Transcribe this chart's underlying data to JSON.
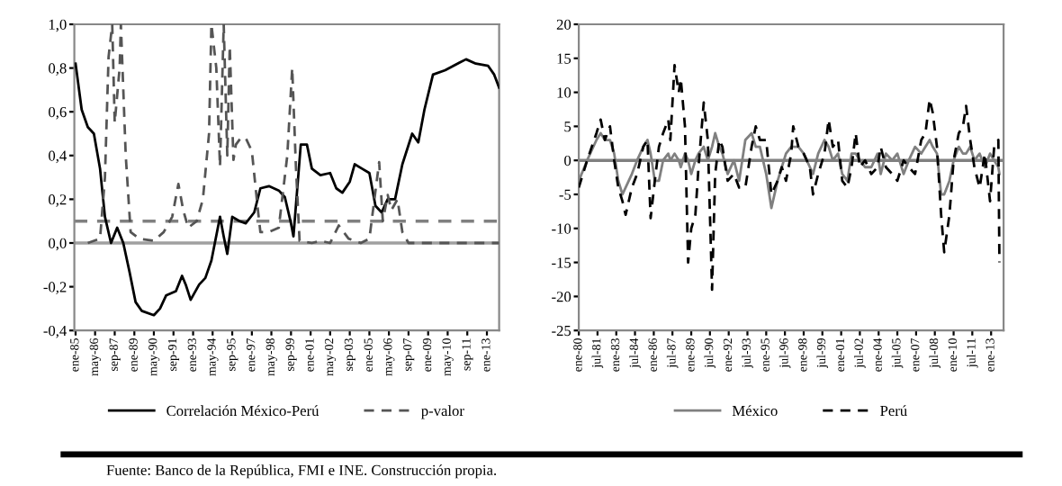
{
  "chart_data": [
    {
      "type": "line",
      "annotations": [
        "Fuente: Banco de la República, FMI e INE. Construcción propia."
      ],
      "xlim": [
        "1984-12",
        "2013-11"
      ],
      "ylim": [
        -0.4,
        1.0
      ],
      "yticks": [
        {
          "value": -0.4,
          "label": "-0,4"
        },
        {
          "value": -0.2,
          "label": "-0,2"
        },
        {
          "value": 0,
          "label": "0,0"
        },
        {
          "value": 0.2,
          "label": "0,2"
        },
        {
          "value": 0.4,
          "label": "0,4"
        },
        {
          "value": 0.6,
          "label": "0,6"
        },
        {
          "value": 0.8,
          "label": "0,8"
        },
        {
          "value": 1.0,
          "label": "1,0"
        }
      ],
      "xticks": [
        {
          "value": "1985-01",
          "label": "ene-85"
        },
        {
          "value": "1986-05",
          "label": "may-86"
        },
        {
          "value": "1987-09",
          "label": "sep-87"
        },
        {
          "value": "1989-01",
          "label": "ene-89"
        },
        {
          "value": "1990-05",
          "label": "may-90"
        },
        {
          "value": "1991-09",
          "label": "sep-91"
        },
        {
          "value": "1993-01",
          "label": "ene-93"
        },
        {
          "value": "1994-05",
          "label": "may-94"
        },
        {
          "value": "1995-09",
          "label": "sep-95"
        },
        {
          "value": "1997-01",
          "label": "ene-97"
        },
        {
          "value": "1998-05",
          "label": "may-98"
        },
        {
          "value": "1999-09",
          "label": "sep-99"
        },
        {
          "value": "2001-01",
          "label": "ene-01"
        },
        {
          "value": "2002-05",
          "label": "may-02"
        },
        {
          "value": "2003-09",
          "label": "sep-03"
        },
        {
          "value": "2005-01",
          "label": "ene-05"
        },
        {
          "value": "2006-05",
          "label": "may-06"
        },
        {
          "value": "2007-09",
          "label": "sep-07"
        },
        {
          "value": "2009-01",
          "label": "ene-09"
        },
        {
          "value": "2010-05",
          "label": "may-10"
        },
        {
          "value": "2011-09",
          "label": "sep-11"
        },
        {
          "value": "2013-01",
          "label": "ene-13"
        }
      ],
      "grid": false,
      "legend": "bottom",
      "ref_lines": [
        {
          "axis": "y",
          "value": 0,
          "label": null,
          "color": "#a0a0a0",
          "line_style": "solid"
        },
        {
          "axis": "y",
          "value": 0.1,
          "label": null,
          "color": "#808080",
          "line_style": "dashed"
        }
      ],
      "series": [
        {
          "name": "Correlación México-Perú",
          "color": "#000000",
          "line_style": "solid",
          "x": [
            "1985-01",
            "1985-06",
            "1985-11",
            "1986-04",
            "1986-09",
            "1987-01",
            "1987-06",
            "1987-11",
            "1988-04",
            "1988-09",
            "1989-02",
            "1989-07",
            "1990-05",
            "1990-10",
            "1991-03",
            "1991-11",
            "1992-04",
            "1992-07",
            "1992-11",
            "1993-06",
            "1993-11",
            "1994-04",
            "1994-11",
            "1995-02",
            "1995-05",
            "1995-09",
            "1996-03",
            "1996-08",
            "1997-03",
            "1997-08",
            "1998-03",
            "1998-11",
            "1999-04",
            "1999-09",
            "1999-11",
            "2000-05",
            "2000-10",
            "2001-02",
            "2001-09",
            "2002-05",
            "2002-10",
            "2003-03",
            "2003-09",
            "2004-01",
            "2004-07",
            "2005-01",
            "2005-06",
            "2005-11",
            "2006-04",
            "2006-10",
            "2007-04",
            "2007-12",
            "2008-05",
            "2008-10",
            "2009-05",
            "2010-03",
            "2011-01",
            "2011-08",
            "2012-04",
            "2013-02",
            "2013-07",
            "2013-11"
          ],
          "values": [
            0.82,
            0.61,
            0.53,
            0.5,
            0.34,
            0.12,
            0.0,
            0.07,
            0.0,
            -0.13,
            -0.27,
            -0.31,
            -0.33,
            -0.3,
            -0.24,
            -0.22,
            -0.15,
            -0.19,
            -0.26,
            -0.19,
            -0.16,
            -0.08,
            0.12,
            0.03,
            -0.05,
            0.12,
            0.1,
            0.09,
            0.14,
            0.25,
            0.26,
            0.24,
            0.21,
            0.09,
            0.03,
            0.45,
            0.45,
            0.34,
            0.31,
            0.32,
            0.25,
            0.23,
            0.28,
            0.36,
            0.34,
            0.32,
            0.17,
            0.14,
            0.2,
            0.2,
            0.36,
            0.5,
            0.46,
            0.61,
            0.77,
            0.79,
            0.82,
            0.84,
            0.82,
            0.81,
            0.77,
            0.71
          ]
        },
        {
          "name": "p-valor",
          "color": "#555555",
          "line_style": "dashed",
          "x": [
            "1985-11",
            "1986-09",
            "1987-01",
            "1987-04",
            "1987-07",
            "1987-09",
            "1988-01",
            "1988-02",
            "1988-06",
            "1988-10",
            "1989-05",
            "1990-05",
            "1991-01",
            "1991-08",
            "1992-01",
            "1992-05",
            "1992-09",
            "1993-04",
            "1993-09",
            "1994-02",
            "1994-04",
            "1994-08",
            "1994-11",
            "1995-02",
            "1995-05",
            "1995-07",
            "1995-10",
            "1995-12",
            "1996-04",
            "1996-08",
            "1997-01",
            "1997-06",
            "1997-08",
            "1998-03",
            "1998-11",
            "1999-06",
            "1999-10",
            "2000-01",
            "2000-04",
            "2001-02",
            "2001-09",
            "2002-05",
            "2002-12",
            "2003-08",
            "2004-06",
            "2005-01",
            "2005-09",
            "2005-12",
            "2006-04",
            "2006-07",
            "2006-12",
            "2007-04",
            "2007-09",
            "2013-11"
          ],
          "values": [
            0.0,
            0.02,
            0.3,
            0.85,
            1.0,
            0.55,
            0.8,
            1.0,
            0.4,
            0.05,
            0.02,
            0.01,
            0.05,
            0.12,
            0.27,
            0.15,
            0.07,
            0.1,
            0.2,
            0.5,
            1.0,
            0.8,
            0.35,
            1.0,
            0.4,
            0.9,
            0.38,
            0.45,
            0.48,
            0.48,
            0.42,
            0.15,
            0.05,
            0.05,
            0.07,
            0.4,
            0.8,
            0.35,
            0.01,
            0.0,
            0.01,
            0.0,
            0.08,
            0.02,
            0.0,
            0.02,
            0.37,
            0.1,
            0.22,
            0.15,
            0.2,
            0.05,
            0.0,
            0.0
          ]
        }
      ]
    },
    {
      "type": "line",
      "xlim": [
        "1980-01",
        "2014-01"
      ],
      "ylim": [
        -25,
        20
      ],
      "yticks": [
        -25,
        -20,
        -15,
        -10,
        -5,
        0,
        5,
        10,
        15,
        20
      ],
      "xticks": [
        {
          "value": "1980-01",
          "label": "ene-80"
        },
        {
          "value": "1981-07",
          "label": "jul-81"
        },
        {
          "value": "1983-01",
          "label": "ene-83"
        },
        {
          "value": "1984-07",
          "label": "jul-84"
        },
        {
          "value": "1986-01",
          "label": "ene-86"
        },
        {
          "value": "1987-07",
          "label": "jul-87"
        },
        {
          "value": "1989-01",
          "label": "ene-89"
        },
        {
          "value": "1990-07",
          "label": "jul-90"
        },
        {
          "value": "1992-01",
          "label": "ene-92"
        },
        {
          "value": "1993-07",
          "label": "jul-93"
        },
        {
          "value": "1995-01",
          "label": "ene-95"
        },
        {
          "value": "1996-07",
          "label": "jul-96"
        },
        {
          "value": "1998-01",
          "label": "ene-98"
        },
        {
          "value": "1999-07",
          "label": "jul-99"
        },
        {
          "value": "2001-01",
          "label": "ene-01"
        },
        {
          "value": "2002-07",
          "label": "jul-02"
        },
        {
          "value": "2004-01",
          "label": "ene-04"
        },
        {
          "value": "2005-07",
          "label": "jul-05"
        },
        {
          "value": "2007-01",
          "label": "ene-07"
        },
        {
          "value": "2008-07",
          "label": "jul-08"
        },
        {
          "value": "2010-01",
          "label": "ene-10"
        },
        {
          "value": "2011-07",
          "label": "jul-11"
        },
        {
          "value": "2013-01",
          "label": "ene-13"
        }
      ],
      "grid": false,
      "legend": "bottom",
      "ref_lines": [
        {
          "axis": "y",
          "value": 0,
          "label": null,
          "color": "#808080",
          "line_style": "solid"
        }
      ],
      "x": [
        "1980-01",
        "1980-09",
        "1981-06",
        "1981-10",
        "1982-02",
        "1982-07",
        "1982-11",
        "1983-03",
        "1983-07",
        "1983-10",
        "1984-04",
        "1984-09",
        "1985-03",
        "1985-07",
        "1985-10",
        "1986-02",
        "1986-06",
        "1986-10",
        "1987-03",
        "1987-05",
        "1987-09",
        "1988-01",
        "1988-03",
        "1988-07",
        "1988-10",
        "1989-01",
        "1989-05",
        "1989-08",
        "1990-01",
        "1990-05",
        "1990-09",
        "1990-12",
        "1991-04",
        "1991-07",
        "1991-12",
        "1992-06",
        "1992-11",
        "1993-05",
        "1993-11",
        "1994-03",
        "1994-07",
        "1995-01",
        "1995-06",
        "1995-12",
        "1996-04",
        "1996-08",
        "1997-01",
        "1997-03",
        "1997-08",
        "1998-01",
        "1998-07",
        "1998-10",
        "1999-03",
        "1999-09",
        "2000-01",
        "2000-05",
        "2000-10",
        "2001-02",
        "2001-07",
        "2001-11",
        "2002-03",
        "2002-07",
        "2002-12",
        "2003-06",
        "2003-12",
        "2004-03",
        "2004-08",
        "2005-02",
        "2005-07",
        "2006-01",
        "2006-06",
        "2006-12",
        "2007-06",
        "2007-10",
        "2008-02",
        "2008-05",
        "2008-09",
        "2009-01",
        "2009-04",
        "2009-09",
        "2010-01",
        "2010-06",
        "2010-10",
        "2011-01",
        "2011-05",
        "2011-09",
        "2012-02",
        "2012-07",
        "2012-12",
        "2013-04",
        "2013-08",
        "2013-09"
      ],
      "series": [
        {
          "name": "México",
          "color": "#808080",
          "line_style": "solid",
          "values": [
            -3,
            0,
            3,
            4,
            3,
            3,
            1,
            -3,
            -5,
            -4,
            -2,
            0,
            2,
            3,
            1,
            -3,
            -3,
            0,
            1,
            0,
            1,
            0,
            -1,
            1,
            0,
            -2,
            0,
            1,
            2,
            0,
            2,
            4,
            2,
            1,
            -2,
            0,
            -3,
            3,
            4,
            2,
            2,
            -2,
            -7,
            -3,
            -1,
            1,
            2,
            2,
            2,
            1,
            -1,
            -2,
            1,
            3,
            2,
            0,
            1,
            -2,
            -3,
            1,
            1,
            0,
            -1,
            -1,
            1,
            -2,
            1,
            0,
            1,
            -2,
            0,
            2,
            1,
            2,
            3,
            2,
            1,
            -5,
            -5,
            -3,
            0,
            2,
            1,
            1,
            2,
            0,
            1,
            -1,
            1,
            0,
            -1,
            -2
          ]
        },
        {
          "name": "Perú",
          "color": "#000000",
          "line_style": "dashed",
          "values": [
            -4,
            0,
            4,
            6,
            3,
            5,
            0,
            -4,
            -6,
            -8,
            -4,
            -2,
            2,
            3,
            -8.5,
            -3,
            2,
            4,
            6,
            3,
            14,
            10,
            12,
            5,
            -15,
            -10,
            -8,
            -1,
            8.5,
            3,
            -19,
            -2,
            3,
            2,
            -3,
            -2,
            -4,
            -4,
            2,
            5,
            3,
            3,
            -5,
            -3,
            -1,
            -3,
            1,
            5,
            2,
            1,
            -1,
            -5,
            -2,
            1,
            6,
            2,
            3,
            -3,
            -4,
            -1,
            4,
            -1,
            0,
            -2,
            -1,
            2,
            -1,
            -2,
            -3,
            0,
            -1,
            -2,
            3,
            4,
            9,
            7,
            2,
            -8,
            -13.5,
            -8,
            0,
            4,
            5,
            8,
            3,
            -1,
            -4,
            1,
            -6,
            2,
            3,
            -15
          ]
        }
      ]
    }
  ]
}
